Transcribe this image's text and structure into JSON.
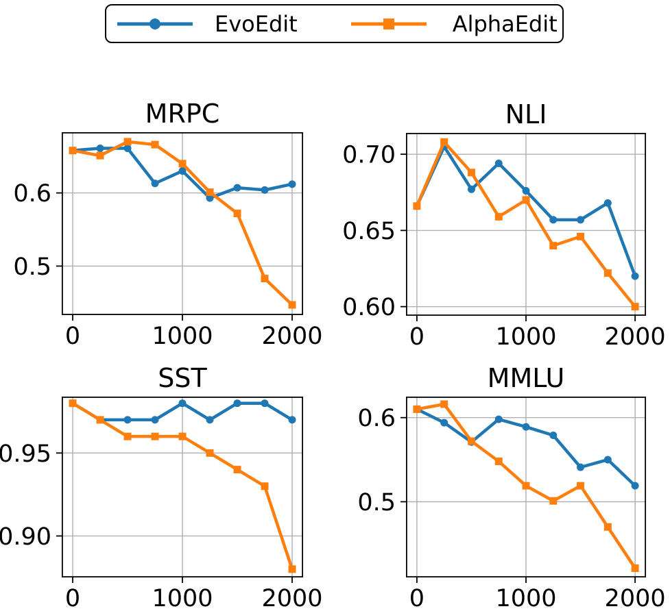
{
  "figure": {
    "background": "#ffffff",
    "grid_color": "#b0b0b0",
    "axis_color": "#000000"
  },
  "legend": {
    "position": "top-center",
    "border_color": "#000000",
    "entries": [
      {
        "label": "EvoEdit",
        "color": "#1f77b4",
        "marker": "circle"
      },
      {
        "label": "AlphaEdit",
        "color": "#ff7f0e",
        "marker": "square"
      }
    ]
  },
  "chart_data": [
    {
      "type": "line",
      "title": "MRPC",
      "x": [
        0,
        250,
        500,
        750,
        1000,
        1250,
        1500,
        1750,
        2000
      ],
      "series": [
        {
          "name": "EvoEdit",
          "color": "#1f77b4",
          "marker": "circle",
          "values": [
            0.658,
            0.661,
            0.661,
            0.613,
            0.63,
            0.593,
            0.607,
            0.604,
            0.612
          ]
        },
        {
          "name": "AlphaEdit",
          "color": "#ff7f0e",
          "marker": "square",
          "values": [
            0.658,
            0.651,
            0.67,
            0.666,
            0.64,
            0.601,
            0.572,
            0.483,
            0.447
          ]
        }
      ],
      "xlim": [
        -100,
        2100
      ],
      "ylim": [
        0.433,
        0.683
      ],
      "xticks": [
        {
          "value": 0,
          "label": "0"
        },
        {
          "value": 1000,
          "label": "1000"
        },
        {
          "value": 2000,
          "label": "2000"
        }
      ],
      "yticks": [
        {
          "value": 0.6,
          "label": "0.6"
        },
        {
          "value": 0.5,
          "label": "0.5"
        }
      ],
      "grid": true
    },
    {
      "type": "line",
      "title": "NLI",
      "x": [
        0,
        250,
        500,
        750,
        1000,
        1250,
        1500,
        1750,
        2000
      ],
      "series": [
        {
          "name": "EvoEdit",
          "color": "#1f77b4",
          "marker": "circle",
          "values": [
            0.666,
            0.705,
            0.677,
            0.694,
            0.676,
            0.657,
            0.657,
            0.668,
            0.62
          ]
        },
        {
          "name": "AlphaEdit",
          "color": "#ff7f0e",
          "marker": "square",
          "values": [
            0.666,
            0.708,
            0.688,
            0.659,
            0.67,
            0.64,
            0.646,
            0.622,
            0.6
          ]
        }
      ],
      "xlim": [
        -100,
        2100
      ],
      "ylim": [
        0.594,
        0.714
      ],
      "xticks": [
        {
          "value": 0,
          "label": "0"
        },
        {
          "value": 1000,
          "label": "1000"
        },
        {
          "value": 2000,
          "label": "2000"
        }
      ],
      "yticks": [
        {
          "value": 0.7,
          "label": "0.70"
        },
        {
          "value": 0.65,
          "label": "0.65"
        },
        {
          "value": 0.6,
          "label": "0.60"
        }
      ],
      "grid": true
    },
    {
      "type": "line",
      "title": "SST",
      "x": [
        0,
        250,
        500,
        750,
        1000,
        1250,
        1500,
        1750,
        2000
      ],
      "series": [
        {
          "name": "EvoEdit",
          "color": "#1f77b4",
          "marker": "circle",
          "values": [
            0.98,
            0.97,
            0.97,
            0.97,
            0.98,
            0.97,
            0.98,
            0.98,
            0.97
          ]
        },
        {
          "name": "AlphaEdit",
          "color": "#ff7f0e",
          "marker": "square",
          "values": [
            0.98,
            0.97,
            0.96,
            0.96,
            0.96,
            0.95,
            0.94,
            0.93,
            0.88
          ]
        }
      ],
      "xlim": [
        -100,
        2100
      ],
      "ylim": [
        0.875,
        0.984
      ],
      "xticks": [
        {
          "value": 0,
          "label": "0"
        },
        {
          "value": 1000,
          "label": "1000"
        },
        {
          "value": 2000,
          "label": "2000"
        }
      ],
      "yticks": [
        {
          "value": 0.95,
          "label": "0.95"
        },
        {
          "value": 0.9,
          "label": "0.90"
        }
      ],
      "grid": true
    },
    {
      "type": "line",
      "title": "MMLU",
      "x": [
        0,
        250,
        500,
        750,
        1000,
        1250,
        1500,
        1750,
        2000
      ],
      "series": [
        {
          "name": "EvoEdit",
          "color": "#1f77b4",
          "marker": "circle",
          "values": [
            0.61,
            0.594,
            0.571,
            0.598,
            0.589,
            0.579,
            0.541,
            0.55,
            0.519
          ]
        },
        {
          "name": "AlphaEdit",
          "color": "#ff7f0e",
          "marker": "square",
          "values": [
            0.61,
            0.616,
            0.572,
            0.548,
            0.519,
            0.501,
            0.519,
            0.47,
            0.421
          ]
        }
      ],
      "xlim": [
        -100,
        2100
      ],
      "ylim": [
        0.41,
        0.625
      ],
      "xticks": [
        {
          "value": 0,
          "label": "0"
        },
        {
          "value": 1000,
          "label": "1000"
        },
        {
          "value": 2000,
          "label": "2000"
        }
      ],
      "yticks": [
        {
          "value": 0.6,
          "label": "0.6"
        },
        {
          "value": 0.5,
          "label": "0.5"
        }
      ],
      "grid": true
    }
  ]
}
